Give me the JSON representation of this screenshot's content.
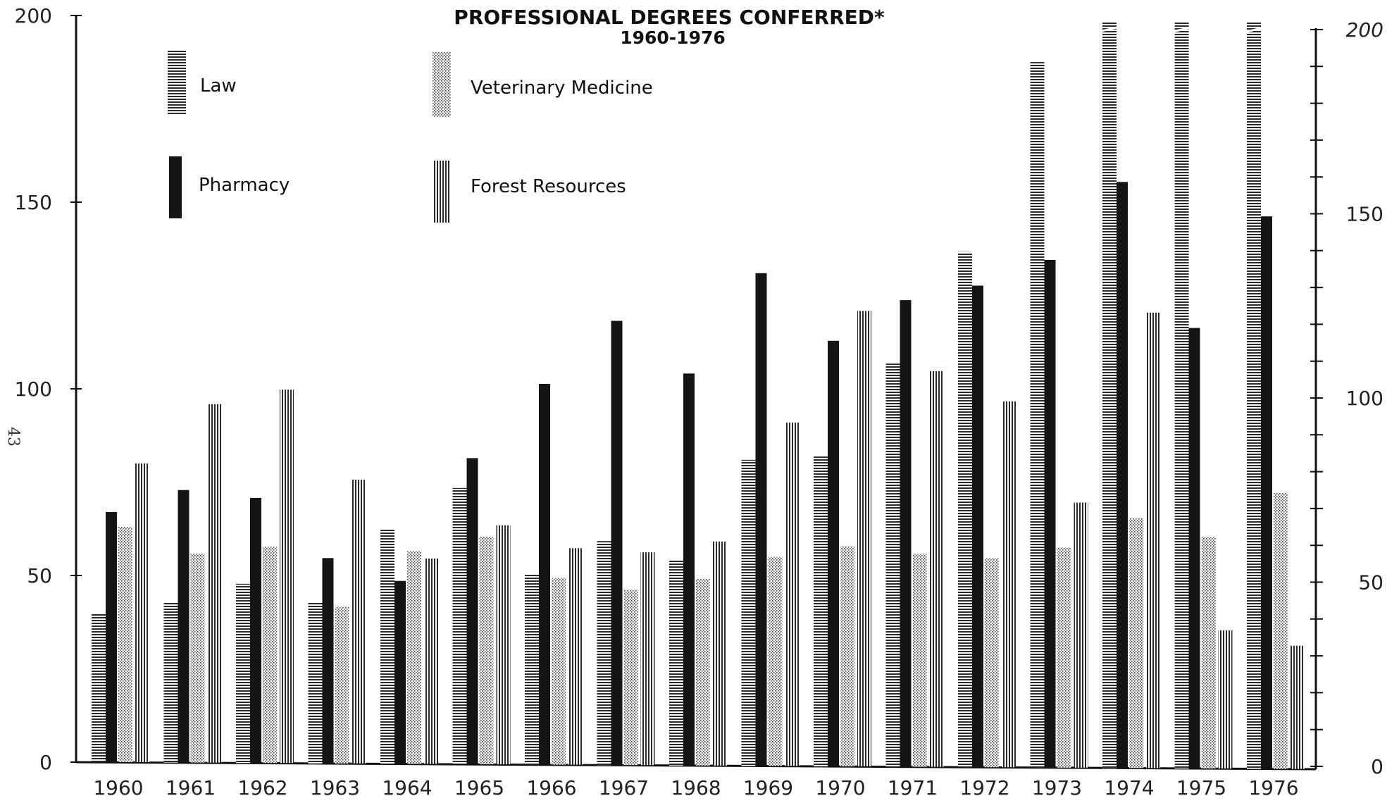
{
  "page_number": "43",
  "chart_data": {
    "type": "bar",
    "title": "PROFESSIONAL DEGREES CONFERRED*",
    "subtitle": "1960-1976",
    "categories": [
      "1960",
      "1961",
      "1962",
      "1963",
      "1964",
      "1965",
      "1966",
      "1967",
      "1968",
      "1969",
      "1970",
      "1971",
      "1972",
      "1973",
      "1974",
      "1975",
      "1976"
    ],
    "series": [
      {
        "name": "Law",
        "pattern": "horizontal-lines",
        "values": [
          40,
          43,
          48,
          43,
          63,
          74,
          51,
          60,
          55,
          82,
          83,
          108,
          138,
          189,
          200,
          200,
          200
        ]
      },
      {
        "name": "Pharmacy",
        "pattern": "solid",
        "values": [
          67,
          73,
          71,
          55,
          49,
          82,
          102,
          119,
          105,
          132,
          114,
          125,
          129,
          136,
          157,
          118,
          148
        ]
      },
      {
        "name": "Veterinary Medicine",
        "pattern": "dots",
        "values": [
          63,
          56,
          58,
          42,
          57,
          61,
          50,
          47,
          50,
          56,
          59,
          57,
          56,
          59,
          67,
          62,
          74
        ]
      },
      {
        "name": "Forest Resources",
        "pattern": "vertical-lines",
        "values": [
          80,
          96,
          100,
          76,
          55,
          64,
          58,
          57,
          60,
          92,
          122,
          106,
          98,
          71,
          122,
          37,
          33
        ]
      }
    ],
    "ylim": [
      0,
      200
    ],
    "yticks": [
      0,
      50,
      100,
      150,
      200
    ],
    "ytick_labels": [
      "0",
      "50",
      "100",
      "150",
      "200"
    ],
    "right_ytick_labels": [
      "0",
      "50",
      "100",
      "150",
      "200"
    ],
    "legend_position": "top-left",
    "colors": {
      "ink": "#1a1a1a",
      "paper": "#ffffff"
    }
  }
}
